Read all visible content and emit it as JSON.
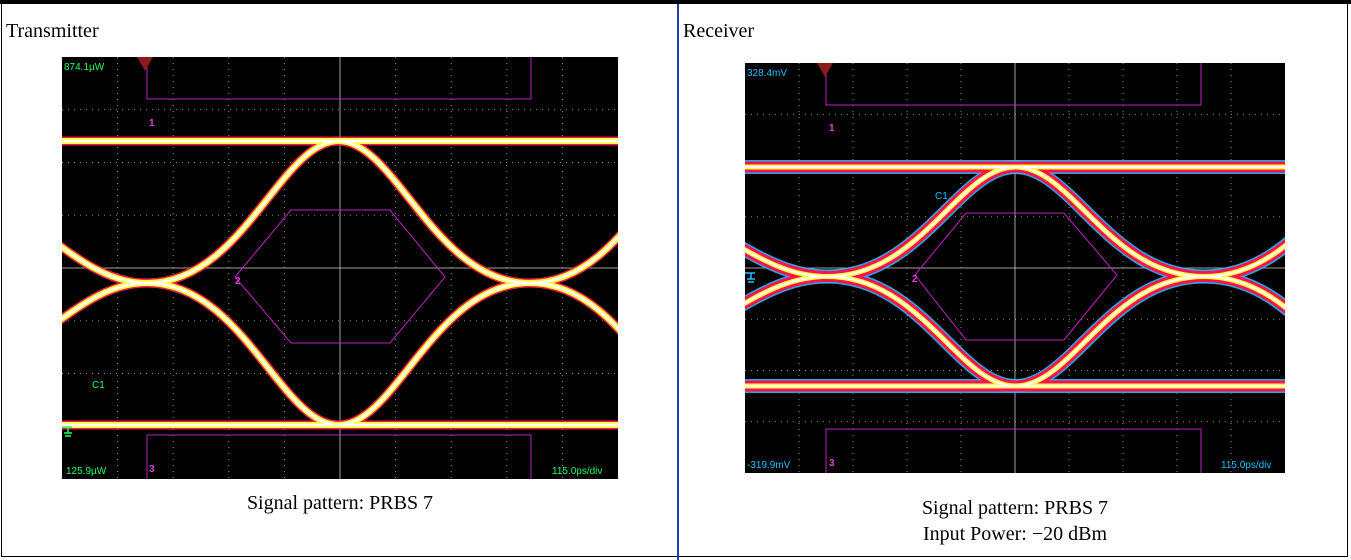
{
  "colors": {
    "grid": "#c8c8c8",
    "mask": "#c020c0",
    "trace_hot": "#ffffff",
    "trace_mid": "#ffff30",
    "trace_warm": "#ff2060",
    "trace_cool": "#20c0ff",
    "marker": "#8b1a1a",
    "readout_tx": "#20ff60",
    "readout_rx": "#20c0ff"
  },
  "left": {
    "title": "Transmitter",
    "scope": {
      "top_readout": "874.1µW",
      "bottom_readout": "125.9µW",
      "timebase": "115.0ps/div",
      "channel": "C1",
      "mask_1": "1",
      "mask_2": "2",
      "mask_3": "3"
    },
    "caption_line1": "Signal pattern: PRBS 7"
  },
  "right": {
    "title": "Receiver",
    "scope": {
      "top_readout": "328.4mV",
      "bottom_readout": "-319.9mV",
      "timebase": "115.0ps/div",
      "channel": "C1",
      "mask_1": "1",
      "mask_2": "2",
      "mask_3": "3"
    },
    "caption_line1": "Signal pattern: PRBS 7",
    "caption_line2": "Input Power: −20 dBm"
  }
}
